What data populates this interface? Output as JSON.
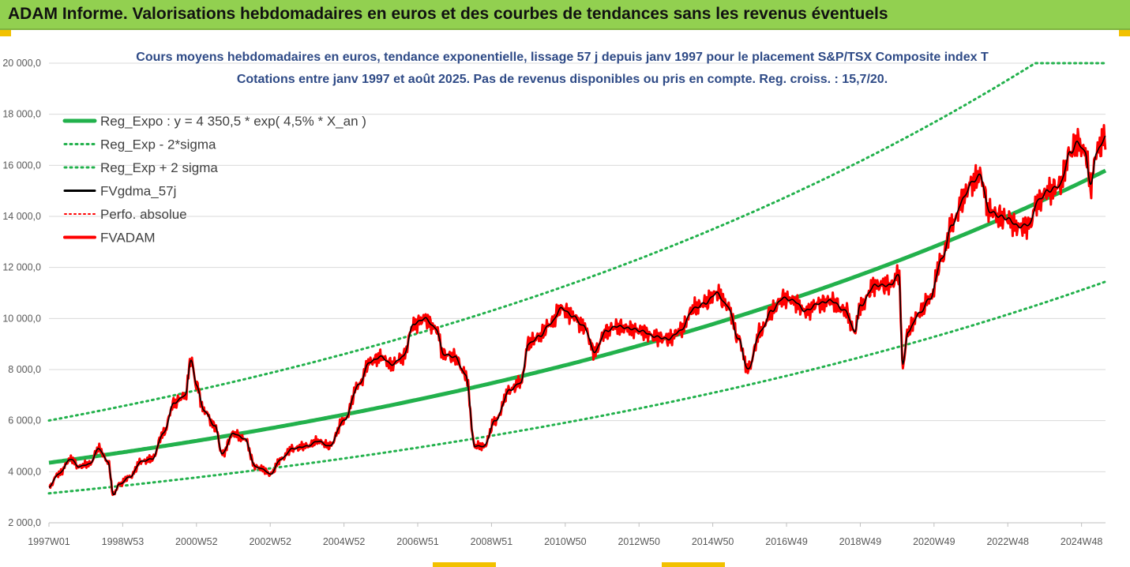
{
  "header": {
    "title": "ADAM Informe. Valorisations hebdomadaires en euros et des courbes de tendances sans les revenus éventuels"
  },
  "colors": {
    "banner": "#92d050",
    "trend": "#22b14c",
    "fvgdma": "#000000",
    "fvadam": "#ff0000",
    "title": "#2e4a86"
  },
  "chart_data": {
    "type": "line",
    "title": "Cours moyens hebdomadaires en euros, tendance exponentielle, lissage 57 j depuis janv 1997  pour le placement S&P/TSX Composite index T",
    "subtitle": "Cotations entre janv 1997 et août 2025. Pas de revenus disponibles ou pris en compte. Reg. croiss. : 15,7/20.",
    "xlabel": "",
    "ylabel": "",
    "ylim": [
      2000,
      20000
    ],
    "xlim": [
      1997.0,
      2025.65
    ],
    "grid": "horizontal",
    "legend_position": "top-left",
    "y_ticks": [
      {
        "value": 2000,
        "label": "2 000,0"
      },
      {
        "value": 4000,
        "label": "4 000,0"
      },
      {
        "value": 6000,
        "label": "6 000,0"
      },
      {
        "value": 8000,
        "label": "8 000,0"
      },
      {
        "value": 10000,
        "label": "10 000,0"
      },
      {
        "value": 12000,
        "label": "12 000,0"
      },
      {
        "value": 14000,
        "label": "14 000,0"
      },
      {
        "value": 16000,
        "label": "16 000,0"
      },
      {
        "value": 18000,
        "label": "18 000,0"
      },
      {
        "value": 20000,
        "label": "20 000,0"
      }
    ],
    "x_ticks": [
      {
        "t": 1997.0,
        "label": "1997W01"
      },
      {
        "t": 1999.0,
        "label": "1998W53"
      },
      {
        "t": 2001.0,
        "label": "2000W52"
      },
      {
        "t": 2003.0,
        "label": "2002W52"
      },
      {
        "t": 2005.0,
        "label": "2004W52"
      },
      {
        "t": 2007.0,
        "label": "2006W51"
      },
      {
        "t": 2009.0,
        "label": "2008W51"
      },
      {
        "t": 2011.0,
        "label": "2010W50"
      },
      {
        "t": 2013.0,
        "label": "2012W50"
      },
      {
        "t": 2015.0,
        "label": "2014W50"
      },
      {
        "t": 2017.0,
        "label": "2016W49"
      },
      {
        "t": 2019.0,
        "label": "2018W49"
      },
      {
        "t": 2021.0,
        "label": "2020W49"
      },
      {
        "t": 2023.0,
        "label": "2022W48"
      },
      {
        "t": 2025.0,
        "label": "2024W48"
      }
    ],
    "regression": {
      "a": 4350.5,
      "rate": 0.045,
      "sigma_factor": 1.38
    },
    "series": [
      {
        "name": "Reg_Expo : y = 4 350,5 * exp( 4,5% *  X_an )",
        "style": "trend"
      },
      {
        "name": "Reg_Exp - 2*sigma",
        "style": "lower"
      },
      {
        "name": "Reg_Exp + 2 sigma",
        "style": "upper"
      },
      {
        "name": "FVgdma_57j",
        "style": "smooth"
      },
      {
        "name": "Perfo. absolue",
        "style": "perfo"
      },
      {
        "name": "FVADAM",
        "style": "price"
      }
    ],
    "price_points": [
      [
        1997.0,
        3400
      ],
      [
        1997.25,
        3900
      ],
      [
        1997.6,
        4500
      ],
      [
        1997.8,
        4200
      ],
      [
        1998.1,
        4300
      ],
      [
        1998.35,
        4900
      ],
      [
        1998.6,
        4400
      ],
      [
        1998.75,
        3100
      ],
      [
        1998.9,
        3500
      ],
      [
        1999.2,
        3800
      ],
      [
        1999.5,
        4400
      ],
      [
        1999.8,
        4500
      ],
      [
        2000.1,
        5500
      ],
      [
        2000.4,
        6700
      ],
      [
        2000.7,
        7000
      ],
      [
        2000.85,
        8400
      ],
      [
        2001.0,
        7400
      ],
      [
        2001.2,
        6400
      ],
      [
        2001.5,
        5800
      ],
      [
        2001.7,
        4700
      ],
      [
        2002.0,
        5500
      ],
      [
        2002.3,
        5300
      ],
      [
        2002.6,
        4200
      ],
      [
        2002.8,
        4100
      ],
      [
        2003.0,
        3900
      ],
      [
        2003.3,
        4500
      ],
      [
        2003.6,
        4900
      ],
      [
        2004.0,
        5000
      ],
      [
        2004.3,
        5200
      ],
      [
        2004.6,
        5000
      ],
      [
        2005.0,
        6000
      ],
      [
        2005.4,
        7400
      ],
      [
        2005.7,
        8300
      ],
      [
        2006.0,
        8500
      ],
      [
        2006.3,
        8200
      ],
      [
        2006.6,
        8500
      ],
      [
        2006.9,
        9800
      ],
      [
        2007.2,
        10000
      ],
      [
        2007.5,
        9600
      ],
      [
        2007.7,
        8600
      ],
      [
        2008.0,
        8500
      ],
      [
        2008.3,
        7800
      ],
      [
        2008.55,
        5000
      ],
      [
        2008.8,
        5000
      ],
      [
        2009.1,
        6000
      ],
      [
        2009.5,
        7200
      ],
      [
        2009.8,
        7500
      ],
      [
        2010.0,
        9000
      ],
      [
        2010.3,
        9300
      ],
      [
        2010.6,
        9800
      ],
      [
        2010.9,
        10400
      ],
      [
        2011.2,
        10100
      ],
      [
        2011.5,
        9700
      ],
      [
        2011.8,
        8700
      ],
      [
        2012.1,
        9500
      ],
      [
        2012.4,
        9700
      ],
      [
        2012.8,
        9600
      ],
      [
        2013.1,
        9500
      ],
      [
        2013.4,
        9300
      ],
      [
        2013.8,
        9200
      ],
      [
        2014.1,
        9500
      ],
      [
        2014.5,
        10400
      ],
      [
        2014.8,
        10600
      ],
      [
        2015.1,
        11000
      ],
      [
        2015.4,
        10500
      ],
      [
        2015.7,
        9200
      ],
      [
        2015.95,
        8000
      ],
      [
        2016.3,
        9500
      ],
      [
        2016.6,
        10300
      ],
      [
        2016.9,
        10800
      ],
      [
        2017.2,
        10700
      ],
      [
        2017.5,
        10300
      ],
      [
        2017.9,
        10600
      ],
      [
        2018.2,
        10700
      ],
      [
        2018.6,
        10300
      ],
      [
        2018.85,
        9500
      ],
      [
        2019.0,
        10500
      ],
      [
        2019.4,
        11300
      ],
      [
        2019.8,
        11300
      ],
      [
        2020.05,
        11700
      ],
      [
        2020.15,
        8200
      ],
      [
        2020.3,
        9500
      ],
      [
        2020.6,
        10200
      ],
      [
        2020.9,
        10800
      ],
      [
        2021.2,
        12300
      ],
      [
        2021.5,
        13700
      ],
      [
        2021.8,
        14700
      ],
      [
        2022.0,
        15300
      ],
      [
        2022.25,
        15600
      ],
      [
        2022.5,
        14200
      ],
      [
        2022.8,
        14000
      ],
      [
        2023.0,
        13900
      ],
      [
        2023.3,
        13600
      ],
      [
        2023.6,
        13700
      ],
      [
        2023.8,
        14600
      ],
      [
        2024.1,
        15000
      ],
      [
        2024.4,
        15200
      ],
      [
        2024.7,
        16500
      ],
      [
        2024.9,
        16900
      ],
      [
        2025.1,
        16500
      ],
      [
        2025.25,
        15200
      ],
      [
        2025.4,
        16500
      ],
      [
        2025.65,
        17100
      ]
    ]
  }
}
